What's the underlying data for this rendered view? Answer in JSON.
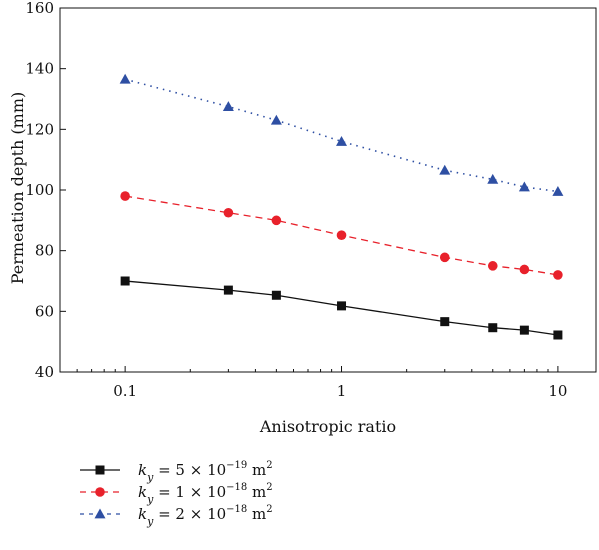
{
  "chart_data": {
    "type": "line",
    "xlabel": "Anisotropic ratio",
    "ylabel": "Permeation depth (mm)",
    "x_scale": "log",
    "xlim": [
      0.05,
      15
    ],
    "ylim": [
      40,
      160
    ],
    "x_ticks": [
      {
        "value": 0.1,
        "label": "0.1"
      },
      {
        "value": 1,
        "label": "1"
      },
      {
        "value": 10,
        "label": "10"
      }
    ],
    "y_ticks": [
      {
        "value": 40,
        "label": "40"
      },
      {
        "value": 60,
        "label": "60"
      },
      {
        "value": 80,
        "label": "80"
      },
      {
        "value": 100,
        "label": "100"
      },
      {
        "value": 120,
        "label": "120"
      },
      {
        "value": 140,
        "label": "140"
      },
      {
        "value": 160,
        "label": "160"
      }
    ],
    "grid": false,
    "legend_position": "below",
    "x": [
      0.1,
      0.3,
      0.5,
      1,
      3,
      5,
      7,
      10
    ],
    "series": [
      {
        "k_coef": "5",
        "k_exp": "−19",
        "color": "#111111",
        "marker": "square",
        "line_style": "solid",
        "values": [
          70,
          67,
          65.3,
          61.8,
          56.6,
          54.6,
          53.8,
          52.2
        ]
      },
      {
        "k_coef": "1",
        "k_exp": "−18",
        "color": "#e8212b",
        "marker": "circle",
        "line_style": "dashed",
        "values": [
          98,
          92.5,
          90,
          85.1,
          77.8,
          75,
          73.8,
          72
        ]
      },
      {
        "k_coef": "2",
        "k_exp": "−18",
        "color": "#2e4fa3",
        "marker": "triangle",
        "line_style": "dotted",
        "values": [
          136.5,
          127.5,
          123,
          116,
          106.5,
          103.5,
          101,
          99.5
        ]
      }
    ]
  }
}
